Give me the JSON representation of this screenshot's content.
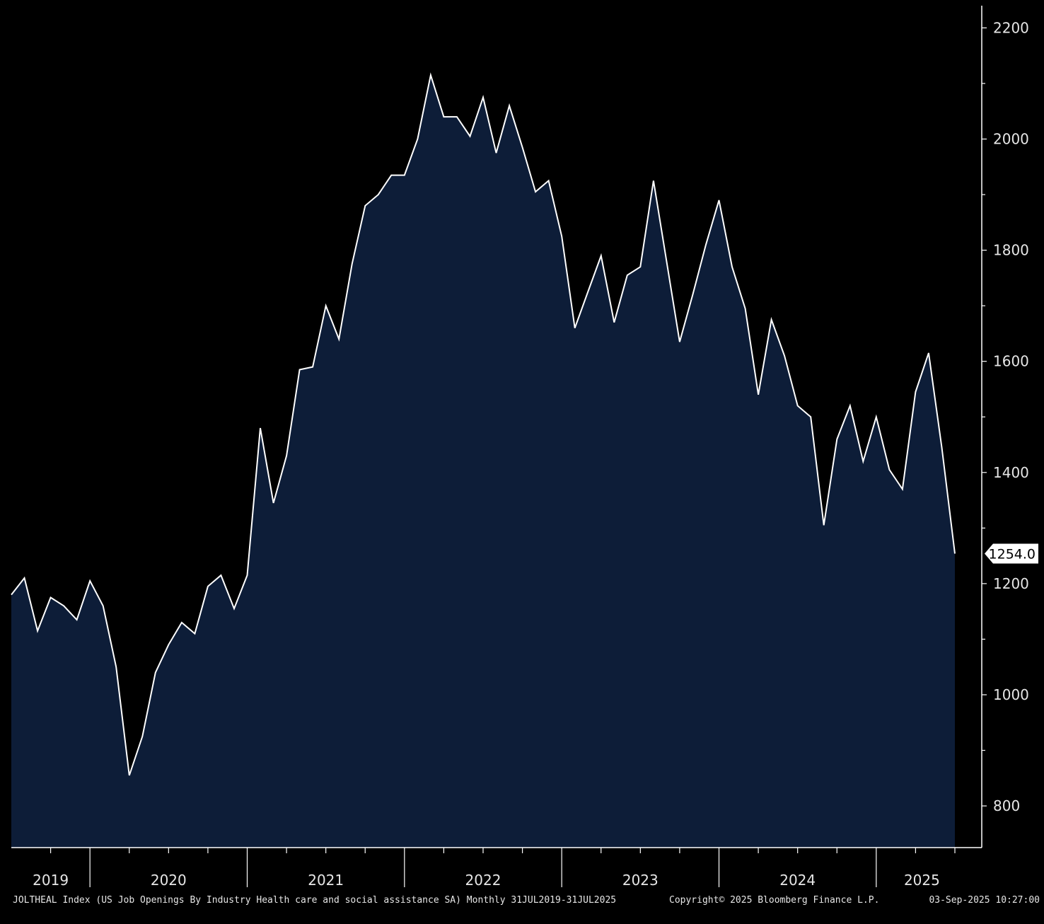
{
  "colors": {
    "background": "#000000",
    "area_fill": "#0d1d38",
    "line": "#ffffff",
    "axis": "#ffffff",
    "text": "#e6e6e6",
    "last_value_box": "#ffffff"
  },
  "footer": {
    "description": "JOLTHEAL Index (US Job Openings By Industry Health care and social assistance SA)  Monthly 31JUL2019-31JUL2025",
    "copyright": "Copyright© 2025 Bloomberg Finance L.P.",
    "timestamp": "03-Sep-2025 10:27:00"
  },
  "last_value_label": "1254.0",
  "chart_data": {
    "type": "area",
    "title": "",
    "xlabel": "",
    "ylabel": "",
    "y_axis_side": "right",
    "ylim": [
      725,
      2240
    ],
    "yticks": [
      800,
      1000,
      1200,
      1400,
      1600,
      1800,
      2000,
      2200
    ],
    "year_labels": [
      "2019",
      "2020",
      "2021",
      "2022",
      "2023",
      "2024",
      "2025"
    ],
    "x_start": "2019-07",
    "x_end": "2025-07",
    "x": [
      "2019-07",
      "2019-08",
      "2019-09",
      "2019-10",
      "2019-11",
      "2019-12",
      "2020-01",
      "2020-02",
      "2020-03",
      "2020-04",
      "2020-05",
      "2020-06",
      "2020-07",
      "2020-08",
      "2020-09",
      "2020-10",
      "2020-11",
      "2020-12",
      "2021-01",
      "2021-02",
      "2021-03",
      "2021-04",
      "2021-05",
      "2021-06",
      "2021-07",
      "2021-08",
      "2021-09",
      "2021-10",
      "2021-11",
      "2021-12",
      "2022-01",
      "2022-02",
      "2022-03",
      "2022-04",
      "2022-05",
      "2022-06",
      "2022-07",
      "2022-08",
      "2022-09",
      "2022-10",
      "2022-11",
      "2022-12",
      "2023-01",
      "2023-02",
      "2023-03",
      "2023-04",
      "2023-05",
      "2023-06",
      "2023-07",
      "2023-08",
      "2023-09",
      "2023-10",
      "2023-11",
      "2023-12",
      "2024-01",
      "2024-02",
      "2024-03",
      "2024-04",
      "2024-05",
      "2024-06",
      "2024-07",
      "2024-08",
      "2024-09",
      "2024-10",
      "2024-11",
      "2024-12",
      "2025-01",
      "2025-02",
      "2025-03",
      "2025-04",
      "2025-05",
      "2025-06",
      "2025-07"
    ],
    "series": [
      {
        "values": [
          1180,
          1210,
          1115,
          1175,
          1160,
          1135,
          1205,
          1160,
          1050,
          855,
          925,
          1040,
          1090,
          1130,
          1110,
          1195,
          1215,
          1155,
          1215,
          1480,
          1345,
          1430,
          1585,
          1590,
          1700,
          1640,
          1775,
          1880,
          1900,
          1935,
          1935,
          2000,
          2115,
          2040,
          2040,
          2005,
          2075,
          1975,
          2060,
          1985,
          1905,
          1925,
          1825,
          1660,
          1725,
          1790,
          1670,
          1755,
          1770,
          1925,
          1780,
          1635,
          1720,
          1810,
          1890,
          1770,
          1695,
          1540,
          1675,
          1610,
          1520,
          1500,
          1305,
          1460,
          1520,
          1420,
          1500,
          1405,
          1370,
          1545,
          1615,
          1445,
          1254
        ]
      }
    ]
  }
}
